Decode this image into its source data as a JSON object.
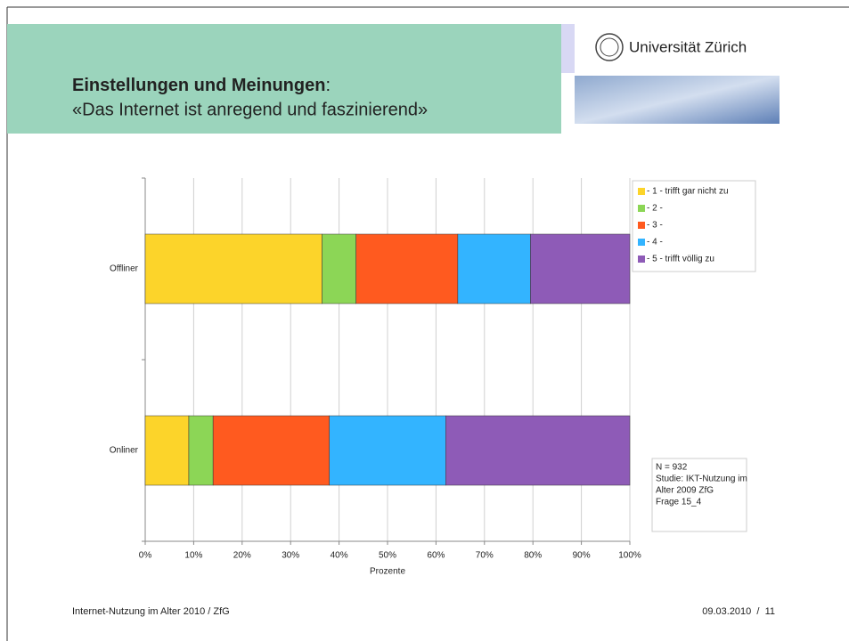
{
  "header": {
    "title": "Einstellungen und Meinungen",
    "title_suffix": ":",
    "subtitle": "«Das Internet ist anregend und faszinierend»",
    "logo_text": "Universität Zürich"
  },
  "chart_data": {
    "type": "bar",
    "orientation": "horizontal",
    "stacked": true,
    "categories": [
      "Offliner",
      "Onliner"
    ],
    "series": [
      {
        "name": "- 1 - trifft gar nicht zu",
        "color": "#fcd42a",
        "values": [
          36.5,
          9
        ]
      },
      {
        "name": "- 2 -",
        "color": "#8cd656",
        "values": [
          7,
          5
        ]
      },
      {
        "name": "- 3 -",
        "color": "#ff5a1f",
        "values": [
          21,
          24
        ]
      },
      {
        "name": "- 4 -",
        "color": "#33b4ff",
        "values": [
          15,
          24
        ]
      },
      {
        "name": "- 5 - trifft völlig zu",
        "color": "#8e5bb7",
        "values": [
          20.5,
          38
        ]
      }
    ],
    "xlim": [
      0,
      100
    ],
    "xticks": [
      {
        "value": 0,
        "label": "0%"
      },
      {
        "value": 10,
        "label": "10%"
      },
      {
        "value": 20,
        "label": "20%"
      },
      {
        "value": 30,
        "label": "30%"
      },
      {
        "value": 40,
        "label": "40%"
      },
      {
        "value": 50,
        "label": "50%"
      },
      {
        "value": 60,
        "label": "60%"
      },
      {
        "value": 70,
        "label": "70%"
      },
      {
        "value": 80,
        "label": "80%"
      },
      {
        "value": 90,
        "label": "90%"
      },
      {
        "value": 100,
        "label": "100%"
      }
    ],
    "xlabel": "Prozente",
    "grid": true,
    "legend": "right",
    "note": [
      "N = 932",
      "Studie: IKT-Nutzung im",
      "Alter 2009 ZfG",
      "Frage 15_4"
    ]
  },
  "footer": {
    "left": "Internet-Nutzung im Alter 2010 / ZfG",
    "right": "09.03.2010  /  11"
  }
}
